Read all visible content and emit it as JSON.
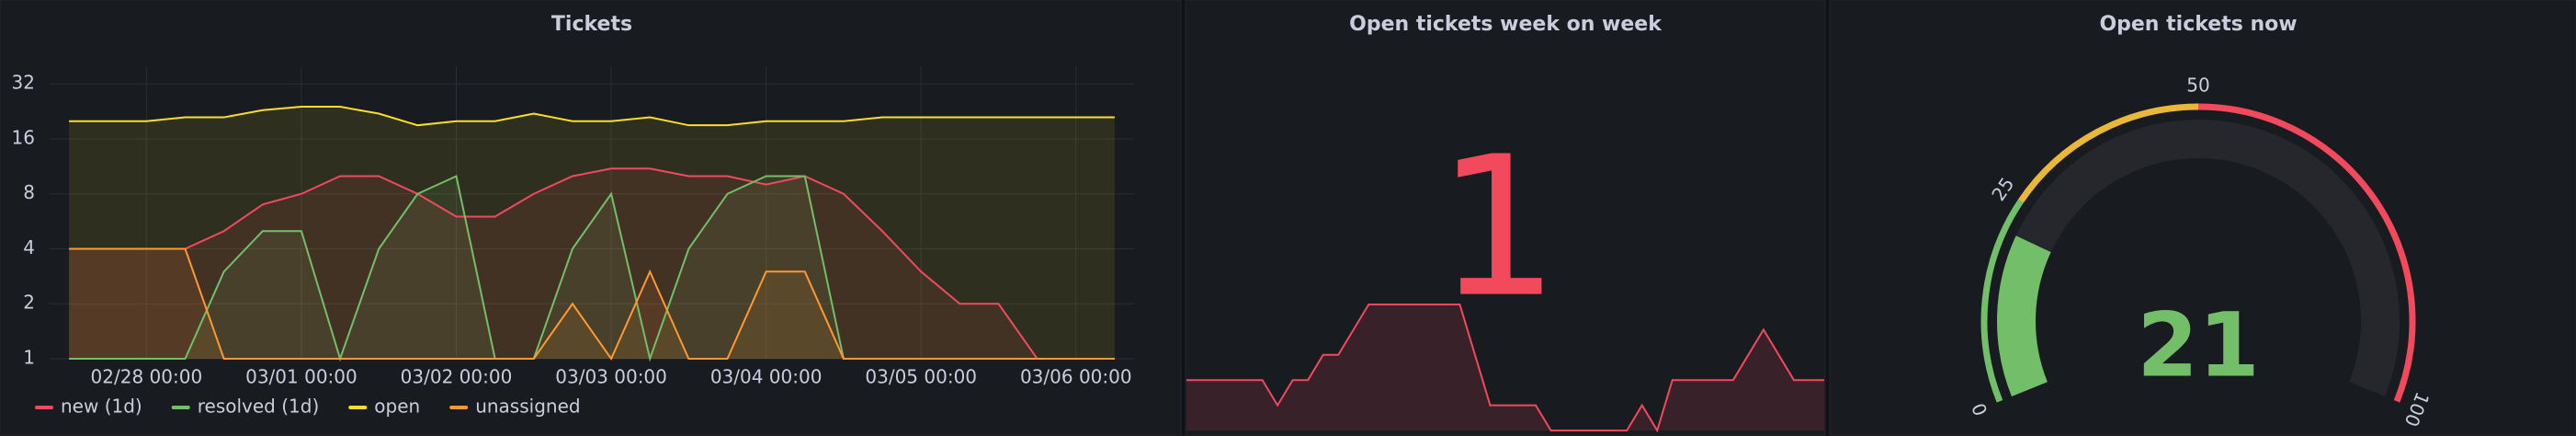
{
  "chart_data": [
    {
      "type": "line",
      "title": "Tickets",
      "x": [
        "02/27 12:00",
        "02/27 18:00",
        "02/28 00:00",
        "02/28 06:00",
        "02/28 12:00",
        "02/28 18:00",
        "03/01 00:00",
        "03/01 06:00",
        "03/01 12:00",
        "03/01 18:00",
        "03/02 00:00",
        "03/02 06:00",
        "03/02 12:00",
        "03/02 18:00",
        "03/03 00:00",
        "03/03 06:00",
        "03/03 12:00",
        "03/03 18:00",
        "03/04 00:00",
        "03/04 06:00",
        "03/04 12:00",
        "03/04 18:00",
        "03/05 00:00",
        "03/05 06:00",
        "03/05 12:00",
        "03/05 18:00",
        "03/06 00:00",
        "03/06 06:00"
      ],
      "series": [
        {
          "name": "new (1d)",
          "color": "#f2495c",
          "values": [
            4,
            4,
            4,
            4,
            5,
            7,
            8,
            10,
            10,
            8,
            6,
            6,
            8,
            10,
            11,
            11,
            10,
            10,
            9,
            10,
            8,
            5,
            3,
            2,
            2,
            0,
            0,
            0
          ]
        },
        {
          "name": "resolved (1d)",
          "color": "#73bf69",
          "values": [
            0,
            0,
            0,
            0,
            3,
            5,
            5,
            0,
            4,
            8,
            10,
            0,
            0,
            4,
            8,
            0,
            4,
            8,
            10,
            10,
            0,
            0,
            0,
            0,
            0,
            0,
            0,
            0
          ]
        },
        {
          "name": "open",
          "color": "#fade2a",
          "values": [
            20,
            20,
            20,
            21,
            21,
            23,
            24,
            24,
            22,
            19,
            20,
            20,
            22,
            20,
            20,
            21,
            19,
            19,
            20,
            20,
            20,
            21,
            21,
            21,
            21,
            21,
            21,
            21
          ]
        },
        {
          "name": "unassigned",
          "color": "#ff9830",
          "values": [
            4,
            4,
            4,
            4,
            0,
            0,
            0,
            0,
            0,
            0,
            0,
            0,
            0,
            2,
            0,
            3,
            0,
            0,
            3,
            3,
            0,
            0,
            0,
            0,
            0,
            0,
            0,
            0
          ]
        }
      ],
      "xlim": [
        "02/27 09:00",
        "03/06 09:00"
      ],
      "xticks": [
        "02/28 00:00",
        "03/01 00:00",
        "03/02 00:00",
        "03/03 00:00",
        "03/04 00:00",
        "03/05 00:00",
        "03/06 00:00"
      ],
      "ylim": [
        1,
        40
      ],
      "yticks": [
        1,
        2,
        4,
        8,
        16,
        32
      ],
      "yscale": "log",
      "grid": true,
      "legend": "bottom-left"
    },
    {
      "type": "stat",
      "title": "Open tickets week on week",
      "value": 1,
      "color": "#f2495c",
      "sparkline": [
        0,
        0,
        0,
        0,
        0,
        0,
        -1,
        0,
        0,
        1,
        1,
        2,
        3,
        3,
        3,
        3,
        3,
        3,
        3,
        1,
        -1,
        -1,
        -1,
        -1,
        -2,
        -2,
        -2,
        -2,
        -2,
        -2,
        -1,
        -2,
        0,
        0,
        0,
        0,
        0,
        1,
        2,
        1,
        0,
        0,
        0
      ]
    },
    {
      "type": "gauge",
      "title": "Open tickets now",
      "value": 21,
      "min": 0,
      "max": 100,
      "ticks": [
        0,
        25,
        50,
        100
      ],
      "thresholds": [
        {
          "value": 0,
          "color": "#73bf69"
        },
        {
          "value": 25,
          "color": "#eab839"
        },
        {
          "value": 50,
          "color": "#f2495c"
        }
      ]
    }
  ]
}
